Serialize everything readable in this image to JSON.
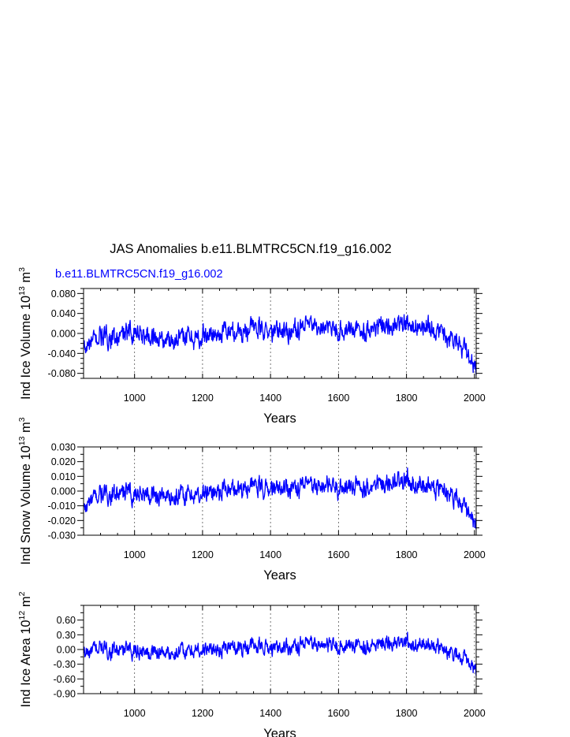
{
  "figure": {
    "title": "JAS Anomalies b.e11.BLMTRC5CN.f19_g16.002",
    "legend_label": "b.e11.BLMTRC5CN.f19_g16.002"
  },
  "colors": {
    "series": "#0000ff",
    "axis": "#000000",
    "grid": "#555555"
  },
  "chart_data": [
    {
      "type": "line",
      "panel": "ice-volume",
      "ylabel": "Ind Ice Volume 10¹³ m³",
      "ylabel_base": "Ind Ice Volume 10",
      "ylabel_exp": "13",
      "ylabel_unit": "m",
      "ylabel_unit_exp": "3",
      "xlabel": "Years",
      "xlim": [
        850,
        2005
      ],
      "ylim": [
        -0.09,
        0.09
      ],
      "xticks": [
        1000,
        1200,
        1400,
        1600,
        1800,
        2000
      ],
      "xtick_labels": [
        "1000",
        "1200",
        "1400",
        "1600",
        "1800",
        "2000"
      ],
      "yticks": [
        -0.08,
        -0.04,
        0.0,
        0.04,
        0.08
      ],
      "ytick_labels": [
        "-0.080",
        "-0.040",
        "0.000",
        "0.040",
        "0.080"
      ],
      "grid": "vertical-dashed-at-major-x-ticks",
      "series": [
        {
          "name": "b.e11.BLMTRC5CN.f19_g16.002",
          "x": [
            850,
            900,
            950,
            1000,
            1050,
            1100,
            1150,
            1200,
            1250,
            1300,
            1350,
            1400,
            1450,
            1500,
            1550,
            1600,
            1650,
            1700,
            1750,
            1800,
            1850,
            1900,
            1950,
            2005
          ],
          "values": [
            -0.032,
            -0.005,
            -0.01,
            0.005,
            -0.008,
            -0.012,
            -0.006,
            -0.008,
            0.0,
            0.005,
            0.012,
            0.002,
            0.005,
            0.012,
            0.01,
            0.005,
            0.008,
            0.012,
            0.015,
            0.022,
            0.012,
            0.002,
            -0.01,
            -0.08
          ],
          "noise_amplitude": 0.028
        }
      ]
    },
    {
      "type": "line",
      "panel": "snow-volume",
      "ylabel": "Ind Snow Volume 10¹³ m³",
      "ylabel_base": "Ind Snow Volume 10",
      "ylabel_exp": "13",
      "ylabel_unit": "m",
      "ylabel_unit_exp": "3",
      "xlabel": "Years",
      "xlim": [
        850,
        2005
      ],
      "ylim": [
        -0.03,
        0.03
      ],
      "xticks": [
        1000,
        1200,
        1400,
        1600,
        1800,
        2000
      ],
      "xtick_labels": [
        "1000",
        "1200",
        "1400",
        "1600",
        "1800",
        "2000"
      ],
      "yticks": [
        -0.03,
        -0.02,
        -0.01,
        0.0,
        0.01,
        0.02,
        0.03
      ],
      "ytick_labels": [
        "-0.030",
        "-0.020",
        "-0.010",
        "0.000",
        "0.010",
        "0.020",
        "0.030"
      ],
      "grid": "vertical-dashed-at-major-x-ticks",
      "series": [
        {
          "name": "b.e11.BLMTRC5CN.f19_g16.002",
          "x": [
            850,
            900,
            950,
            1000,
            1050,
            1100,
            1150,
            1200,
            1250,
            1300,
            1350,
            1400,
            1450,
            1500,
            1550,
            1600,
            1650,
            1700,
            1750,
            1800,
            1850,
            1900,
            1950,
            2005
          ],
          "values": [
            -0.012,
            -0.002,
            -0.003,
            -0.001,
            -0.002,
            -0.004,
            -0.003,
            -0.002,
            0.0,
            0.002,
            0.004,
            0.001,
            0.002,
            0.004,
            0.003,
            0.002,
            0.003,
            0.004,
            0.005,
            0.007,
            0.004,
            0.001,
            -0.004,
            -0.026
          ],
          "noise_amplitude": 0.009
        }
      ]
    },
    {
      "type": "line",
      "panel": "ice-area",
      "ylabel": "Ind Ice Area 10¹² m²",
      "ylabel_base": "Ind Ice Area 10",
      "ylabel_exp": "12",
      "ylabel_unit": "m",
      "ylabel_unit_exp": "2",
      "xlabel": "Years",
      "xlim": [
        850,
        2005
      ],
      "ylim": [
        -0.9,
        0.9
      ],
      "xticks": [
        1000,
        1200,
        1400,
        1600,
        1800,
        2000
      ],
      "xtick_labels": [
        "1000",
        "1200",
        "1400",
        "1600",
        "1800",
        "2000"
      ],
      "yticks": [
        -0.9,
        -0.6,
        -0.3,
        0.0,
        0.3,
        0.6
      ],
      "ytick_labels": [
        "-0.90",
        "-0.60",
        "-0.30",
        "0.00",
        "0.30",
        "0.60"
      ],
      "grid": "vertical-dashed-at-major-x-ticks",
      "series": [
        {
          "name": "b.e11.BLMTRC5CN.f19_g16.002",
          "x": [
            850,
            900,
            950,
            1000,
            1050,
            1100,
            1150,
            1200,
            1250,
            1300,
            1350,
            1400,
            1450,
            1500,
            1550,
            1600,
            1650,
            1700,
            1750,
            1800,
            1850,
            1900,
            1950,
            2005
          ],
          "values": [
            -0.1,
            0.02,
            -0.03,
            0.0,
            -0.05,
            -0.06,
            -0.04,
            -0.02,
            0.02,
            0.05,
            0.08,
            0.03,
            0.05,
            0.1,
            0.08,
            0.05,
            0.07,
            0.1,
            0.12,
            0.14,
            0.1,
            0.03,
            -0.08,
            -0.5
          ],
          "noise_amplitude": 0.22
        }
      ]
    }
  ]
}
